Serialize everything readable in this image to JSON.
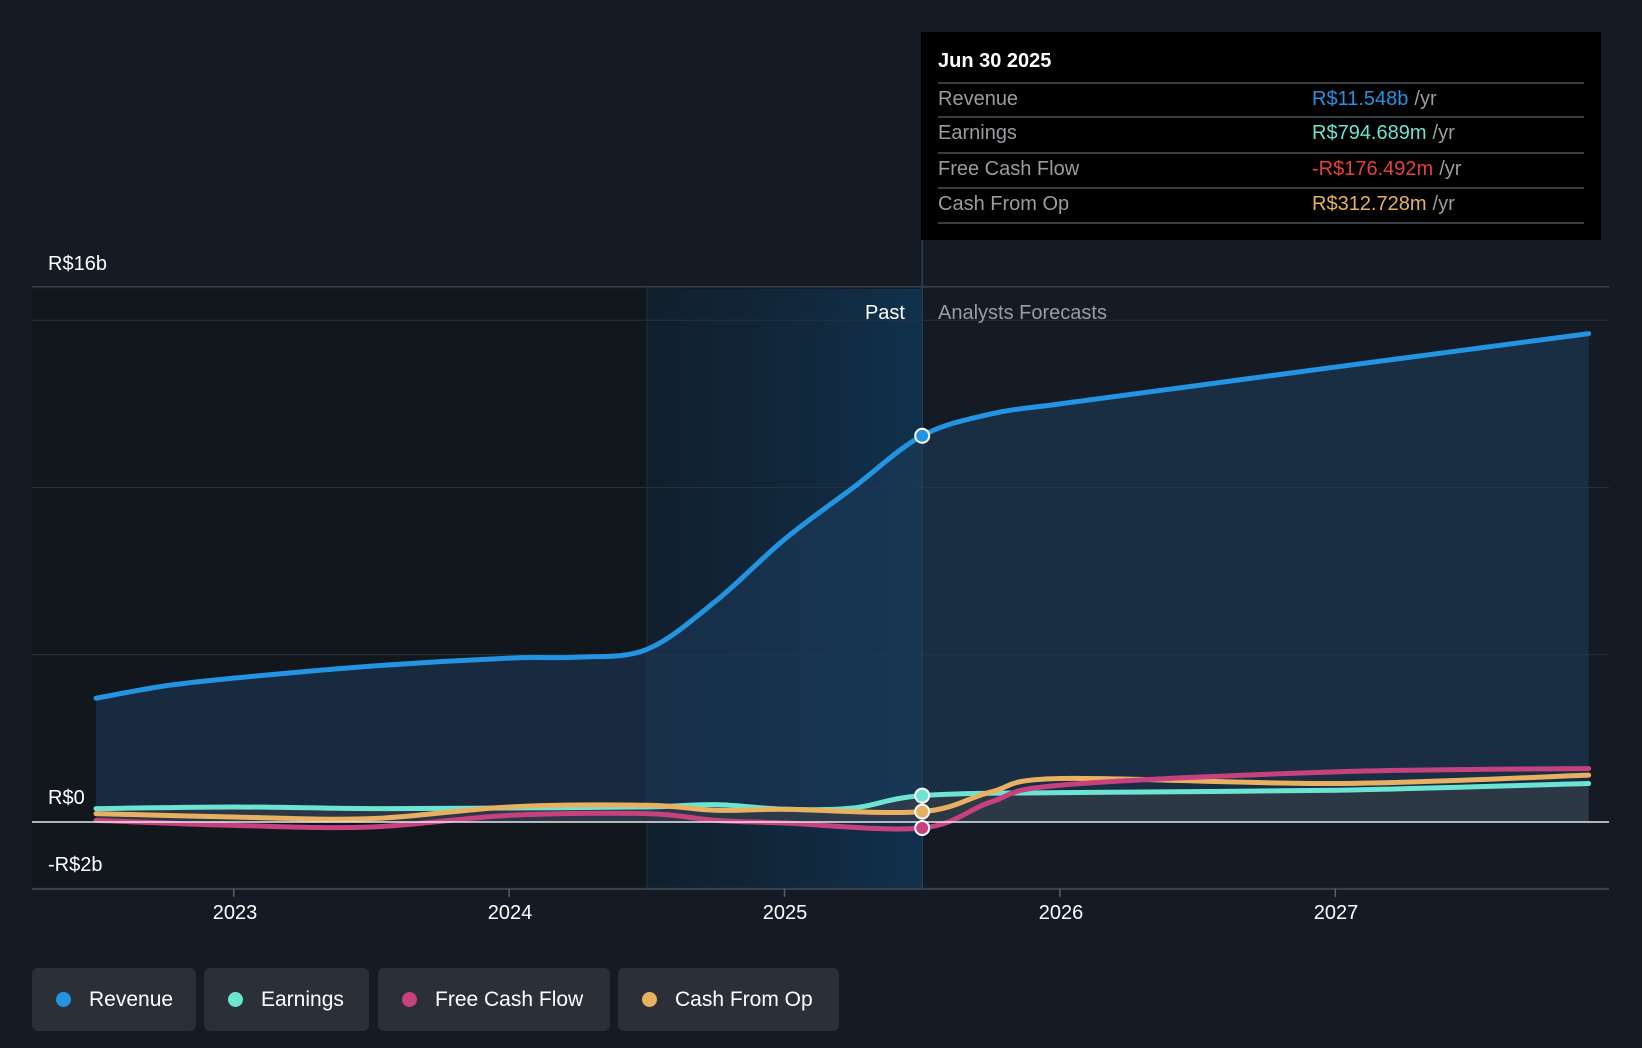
{
  "chart_data": {
    "type": "line",
    "title": "",
    "xlabel": "",
    "ylabel": "",
    "ylim": [
      -2,
      16
    ],
    "xlim": [
      2022.5,
      2027.92
    ],
    "y_tick_labels": [
      "R$16b",
      "R$0",
      "-R$2b"
    ],
    "x_tick_labels": [
      "2023",
      "2024",
      "2025",
      "2026",
      "2027"
    ],
    "x_ticks": [
      2023,
      2024,
      2025,
      2026,
      2027
    ],
    "gridlines_b": [
      0,
      5,
      10,
      15
    ],
    "regions": {
      "past_label": "Past",
      "forecast_label": "Analysts Forecasts",
      "past_start": 2024.5,
      "forecast_start": 2025.5
    },
    "series": [
      {
        "name": "Revenue",
        "color": "#2394e2",
        "unit": "R$ billions",
        "x": [
          2022.5,
          2022.75,
          2023,
          2023.5,
          2024,
          2024.25,
          2024.5,
          2024.75,
          2025,
          2025.25,
          2025.5,
          2025.75,
          2026,
          2026.5,
          2027,
          2027.92
        ],
        "values": [
          3.7,
          4.07,
          4.3,
          4.66,
          4.9,
          4.93,
          5.16,
          6.6,
          8.45,
          10.0,
          11.548,
          12.2,
          12.5,
          13.05,
          13.6,
          14.6
        ]
      },
      {
        "name": "Earnings",
        "color": "#6de3d3",
        "unit": "R$ billions",
        "x": [
          2022.5,
          2023,
          2023.5,
          2024,
          2024.5,
          2024.75,
          2025,
          2025.25,
          2025.5,
          2026,
          2027,
          2027.92
        ],
        "values": [
          0.4,
          0.45,
          0.4,
          0.42,
          0.45,
          0.52,
          0.38,
          0.42,
          0.79,
          0.88,
          0.95,
          1.15
        ]
      },
      {
        "name": "Free Cash Flow",
        "color": "#c5427e",
        "unit": "R$ billions",
        "x": [
          2022.5,
          2023,
          2023.5,
          2024,
          2024.5,
          2024.75,
          2025,
          2025.5,
          2025.75,
          2026,
          2027,
          2027.92
        ],
        "values": [
          0.05,
          -0.1,
          -0.15,
          0.2,
          0.25,
          0.05,
          -0.03,
          -0.18,
          0.6,
          1.1,
          1.5,
          1.6
        ]
      },
      {
        "name": "Cash From Op",
        "color": "#e8b161",
        "unit": "R$ billions",
        "x": [
          2022.5,
          2023,
          2023.5,
          2024,
          2024.5,
          2024.75,
          2025,
          2025.5,
          2025.75,
          2026,
          2027,
          2027.92
        ],
        "values": [
          0.25,
          0.15,
          0.1,
          0.45,
          0.5,
          0.35,
          0.38,
          0.31,
          0.9,
          1.3,
          1.15,
          1.4
        ]
      }
    ]
  },
  "tooltip": {
    "date": "Jun 30 2025",
    "unit": "/yr",
    "rows": [
      {
        "label": "Revenue",
        "value": "R$11.548b",
        "color": "#2394e2"
      },
      {
        "label": "Earnings",
        "value": "R$794.689m",
        "color": "#6de3d3"
      },
      {
        "label": "Free Cash Flow",
        "value": "-R$176.492m",
        "color": "#e5413f"
      },
      {
        "label": "Cash From Op",
        "value": "R$312.728m",
        "color": "#e8b161"
      }
    ]
  },
  "legend": [
    {
      "label": "Revenue",
      "color": "#2394e2"
    },
    {
      "label": "Earnings",
      "color": "#6de3d3"
    },
    {
      "label": "Free Cash Flow",
      "color": "#c5427e"
    },
    {
      "label": "Cash From Op",
      "color": "#e8b161"
    }
  ]
}
